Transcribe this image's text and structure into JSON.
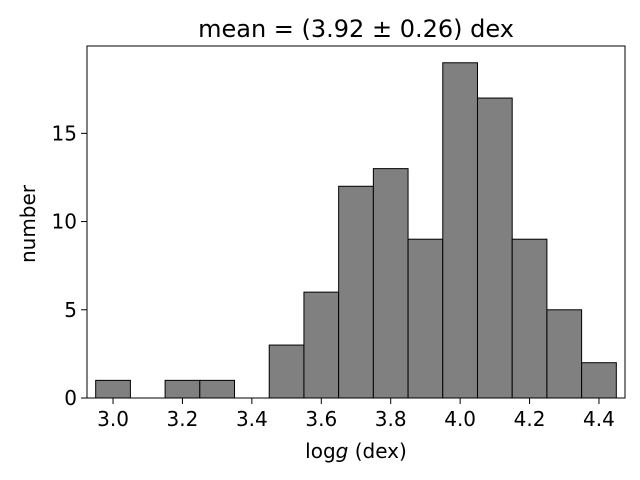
{
  "chart_data": {
    "type": "bar",
    "subtype": "histogram",
    "title": "mean = (3.92 ± 0.26) dex",
    "xlabel_prefix": "log",
    "xlabel_var": "g",
    "xlabel_suffix": " (dex)",
    "ylabel": "number",
    "bin_edges": [
      2.95,
      3.05,
      3.15,
      3.25,
      3.35,
      3.45,
      3.55,
      3.65,
      3.75,
      3.85,
      3.95,
      4.05,
      4.15,
      4.25,
      4.35,
      4.45
    ],
    "values": [
      1,
      0,
      1,
      1,
      0,
      3,
      6,
      12,
      13,
      9,
      19,
      17,
      9,
      5,
      2
    ],
    "xlim": [
      2.925,
      4.475
    ],
    "ylim": [
      0,
      19.95
    ],
    "xticks": [
      3.0,
      3.2,
      3.4,
      3.6,
      3.8,
      4.0,
      4.2,
      4.4
    ],
    "xtick_labels": [
      "3.0",
      "3.2",
      "3.4",
      "3.6",
      "3.8",
      "4.0",
      "4.2",
      "4.4"
    ],
    "yticks": [
      0,
      5,
      10,
      15
    ],
    "ytick_labels": [
      "0",
      "5",
      "10",
      "15"
    ],
    "bar_color": "#808080",
    "edge_color": "#000000",
    "grid": false,
    "legend": "none"
  }
}
